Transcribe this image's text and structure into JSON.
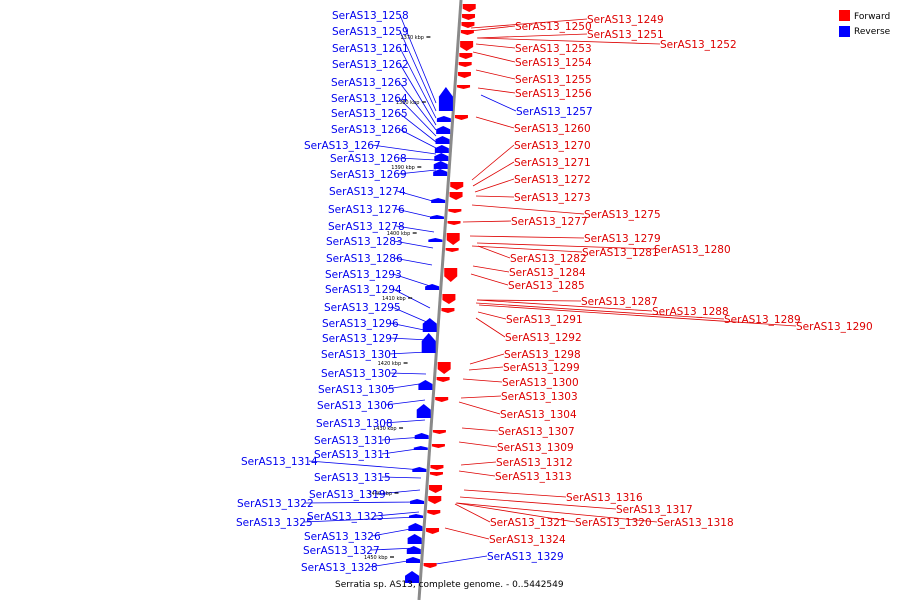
{
  "caption": "Serratia sp. AS13, complete genome. - 0..5442549",
  "legend": [
    {
      "label": "Forward",
      "color": "#ff0000"
    },
    {
      "label": "Reverse",
      "color": "#0000ff"
    }
  ],
  "colors": {
    "forward": "#ff0000",
    "reverse": "#0000ff",
    "forward_text": "#dd0000",
    "reverse_text": "#0000ee",
    "backbone": "#808080"
  },
  "kbp_ticks": [
    "1370 kbp",
    "1380 kbp",
    "1390 kbp",
    "1400 kbp",
    "1410 kbp",
    "1420 kbp",
    "1430 kbp",
    "1440 kbp",
    "1450 kbp"
  ],
  "reverse_labels": [
    "SerAS13_1258",
    "SerAS13_1259",
    "SerAS13_1261",
    "SerAS13_1262",
    "SerAS13_1263",
    "SerAS13_1264",
    "SerAS13_1265",
    "SerAS13_1266",
    "SerAS13_1267",
    "SerAS13_1268",
    "SerAS13_1269",
    "SerAS13_1274",
    "SerAS13_1276",
    "SerAS13_1278",
    "SerAS13_1283",
    "SerAS13_1286",
    "SerAS13_1293",
    "SerAS13_1294",
    "SerAS13_1295",
    "SerAS13_1296",
    "SerAS13_1297",
    "SerAS13_1301",
    "SerAS13_1302",
    "SerAS13_1305",
    "SerAS13_1306",
    "SerAS13_1308",
    "SerAS13_1310",
    "SerAS13_1311",
    "SerAS13_1314",
    "SerAS13_1315",
    "SerAS13_1319",
    "SerAS13_1322",
    "SerAS13_1323",
    "SerAS13_1325",
    "SerAS13_1326",
    "SerAS13_1327",
    "SerAS13_1328",
    "SerAS13_1257",
    "SerAS13_1329"
  ],
  "forward_labels": [
    "SerAS13_1249",
    "SerAS13_1250",
    "SerAS13_1251",
    "SerAS13_1252",
    "SerAS13_1253",
    "SerAS13_1254",
    "SerAS13_1255",
    "SerAS13_1256",
    "SerAS13_1260",
    "SerAS13_1270",
    "SerAS13_1271",
    "SerAS13_1272",
    "SerAS13_1273",
    "SerAS13_1275",
    "SerAS13_1277",
    "SerAS13_1279",
    "SerAS13_1280",
    "SerAS13_1281",
    "SerAS13_1282",
    "SerAS13_1284",
    "SerAS13_1285",
    "SerAS13_1287",
    "SerAS13_1288",
    "SerAS13_1289",
    "SerAS13_1290",
    "SerAS13_1291",
    "SerAS13_1292",
    "SerAS13_1298",
    "SerAS13_1299",
    "SerAS13_1300",
    "SerAS13_1303",
    "SerAS13_1304",
    "SerAS13_1307",
    "SerAS13_1309",
    "SerAS13_1312",
    "SerAS13_1313",
    "SerAS13_1316",
    "SerAS13_1317",
    "SerAS13_1318",
    "SerAS13_1320",
    "SerAS13_1321",
    "SerAS13_1324"
  ]
}
